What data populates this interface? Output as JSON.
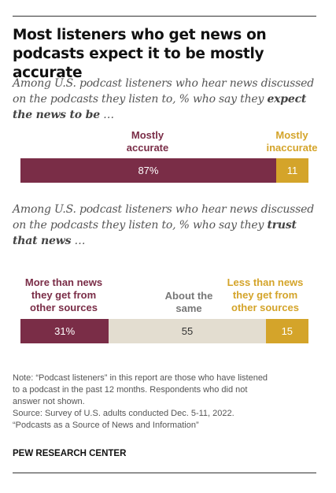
{
  "title_line1": "Most listeners who get news on",
  "title_line2": "podcasts expect it to be mostly accurate",
  "colors": {
    "maroon": "#7a2d47",
    "gold": "#d4a42a",
    "beige": "#e3ddd0",
    "gray_label": "#777777"
  },
  "chart_data": [
    {
      "type": "bar",
      "subtitle_plain": "Among U.S. podcast listeners who hear news discussed on the podcasts they listen to, % who say they",
      "subtitle_bold": "expect the news to be",
      "subtitle_end": " …",
      "categories": [
        "Mostly accurate",
        "Mostly inaccurate"
      ],
      "values": [
        87,
        11
      ],
      "labels": [
        "87%",
        "11"
      ],
      "xlim": [
        0,
        100
      ]
    },
    {
      "type": "bar",
      "subtitle_plain": "Among U.S. podcast listeners who hear news discussed on the podcasts they listen to, % who say they",
      "subtitle_bold": "trust that news",
      "subtitle_end": " …",
      "categories": [
        "More than news they get from other sources",
        "About the same",
        "Less than news they get from other sources"
      ],
      "values": [
        31,
        55,
        15
      ],
      "labels": [
        "31%",
        "55",
        "15"
      ],
      "xlim": [
        0,
        100
      ]
    }
  ],
  "note": [
    "Note: “Podcast listeners” in this report are those who have listened",
    "to a podcast in the past 12 months. Respondents who did not",
    "answer not shown.",
    "Source: Survey of U.S. adults conducted Dec. 5-11, 2022.",
    "“Podcasts as a Source of News and Information”"
  ],
  "brand": "PEW RESEARCH CENTER"
}
